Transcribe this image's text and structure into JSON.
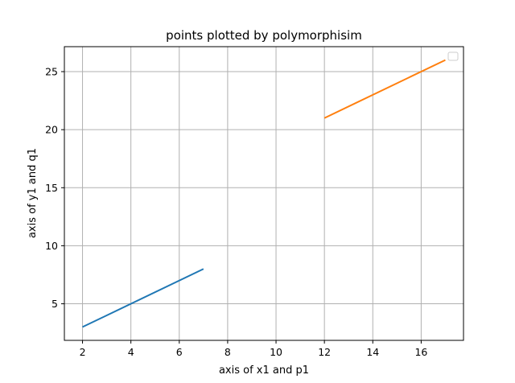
{
  "chart_data": {
    "type": "line",
    "title": "points plotted by polymorphisim",
    "xlabel": "axis of x1 and p1",
    "ylabel": "axis of y1 and q1",
    "xlim": [
      1.25,
      17.75
    ],
    "ylim": [
      1.85,
      27.15
    ],
    "xticks": [
      2,
      4,
      6,
      8,
      10,
      12,
      14,
      16
    ],
    "yticks": [
      5,
      10,
      15,
      20,
      25
    ],
    "grid": true,
    "legend": {
      "placement": "top-right",
      "entries": []
    },
    "series": [
      {
        "x": [
          2,
          7
        ],
        "y": [
          3,
          8
        ],
        "color": "#1f77b4"
      },
      {
        "x": [
          12,
          17
        ],
        "y": [
          21,
          26
        ],
        "color": "#ff7f0e"
      }
    ]
  },
  "colors": {
    "grid": "#b0b0b0",
    "axes": "#000000"
  }
}
